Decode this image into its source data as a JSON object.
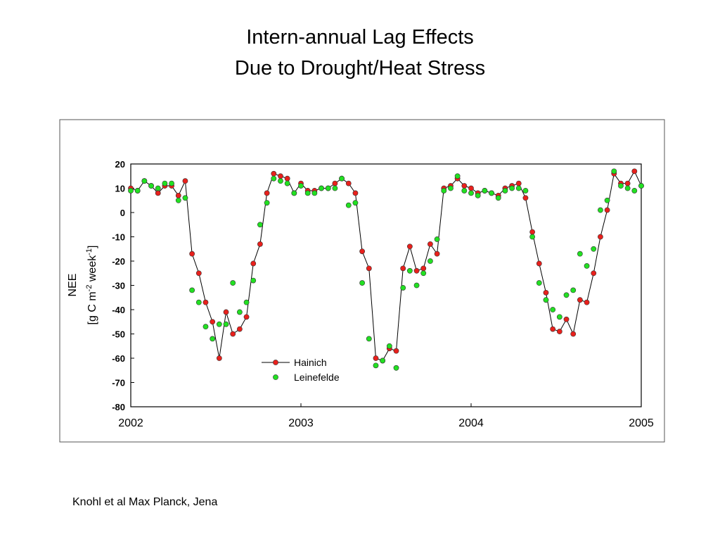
{
  "chart_data": {
    "type": "scatter",
    "title": [
      "Intern-annual Lag Effects",
      "Due to Drought/Heat Stress"
    ],
    "y_label": [
      "NEE",
      "[g C m",
      "-2",
      " week",
      "-1",
      "]"
    ],
    "footer": "Knohl et al Max Planck, Jena",
    "x": [
      2002.0,
      2002.04,
      2002.08,
      2002.12,
      2002.16,
      2002.2,
      2002.24,
      2002.28,
      2002.32,
      2002.36,
      2002.4,
      2002.44,
      2002.48,
      2002.52,
      2002.56,
      2002.6,
      2002.64,
      2002.68,
      2002.72,
      2002.76,
      2002.8,
      2002.84,
      2002.88,
      2002.92,
      2002.96,
      2003.0,
      2003.04,
      2003.08,
      2003.12,
      2003.16,
      2003.2,
      2003.24,
      2003.28,
      2003.32,
      2003.36,
      2003.4,
      2003.44,
      2003.48,
      2003.52,
      2003.56,
      2003.6,
      2003.64,
      2003.68,
      2003.72,
      2003.76,
      2003.8,
      2003.84,
      2003.88,
      2003.92,
      2003.96,
      2004.0,
      2004.04,
      2004.08,
      2004.12,
      2004.16,
      2004.2,
      2004.24,
      2004.28,
      2004.32,
      2004.36,
      2004.4,
      2004.44,
      2004.48,
      2004.52,
      2004.56,
      2004.6,
      2004.64,
      2004.68,
      2004.72,
      2004.76,
      2004.8,
      2004.84,
      2004.88,
      2004.92,
      2004.96,
      2005.0
    ],
    "series": [
      {
        "name": "Hainich",
        "color": "#e8201c",
        "line": true,
        "values": [
          10,
          9,
          13,
          11,
          8,
          11,
          11,
          7,
          13,
          -17,
          -25,
          -37,
          -45,
          -60,
          -41,
          -50,
          -48,
          -43,
          -21,
          -13,
          8,
          16,
          15,
          14,
          8,
          12,
          9,
          9,
          10,
          10,
          12,
          14,
          12,
          8,
          -16,
          -23,
          -60,
          -61,
          -56,
          -57,
          -23,
          -14,
          -24,
          -23,
          -13,
          -17,
          10,
          11,
          14,
          11,
          10,
          8,
          9,
          8,
          7,
          10,
          11,
          12,
          6,
          -8,
          -21,
          -33,
          -48,
          -49,
          -44,
          -50,
          -36,
          -37,
          -25,
          -10,
          1,
          16,
          12,
          12,
          17,
          11
        ]
      },
      {
        "name": "Leinefelde",
        "color": "#22e022",
        "line": false,
        "values": [
          9,
          9,
          13,
          11,
          10,
          12,
          12,
          5,
          6,
          -32,
          -37,
          -47,
          -52,
          -46,
          -46,
          -29,
          -41,
          -37,
          -28,
          -5,
          4,
          14,
          13,
          12,
          8,
          11,
          8,
          8,
          10,
          10,
          10,
          14,
          3,
          4,
          -29,
          -52,
          -63,
          -61,
          -55,
          -64,
          -31,
          -24,
          -30,
          -25,
          -20,
          -11,
          9,
          10,
          15,
          9,
          8,
          7,
          9,
          8,
          6,
          9,
          10,
          10,
          9,
          -10,
          -29,
          -36,
          -40,
          -43,
          -34,
          -32,
          -17,
          -22,
          -15,
          1,
          5,
          17,
          11,
          10,
          9,
          11
        ]
      }
    ],
    "xlim": [
      2002,
      2005
    ],
    "xticks": [
      2002,
      2003,
      2004,
      2005
    ],
    "ylim": [
      -80,
      20
    ],
    "yticks": [
      -80,
      -70,
      -60,
      -50,
      -40,
      -30,
      -20,
      -10,
      0,
      10,
      20
    ]
  }
}
